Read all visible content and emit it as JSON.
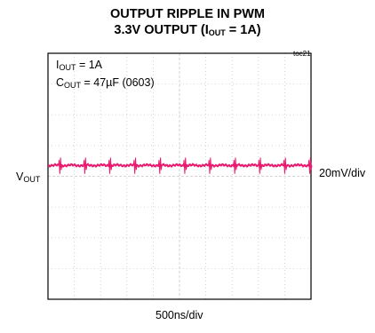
{
  "title_line1": "OUTPUT RIPPLE IN PWM",
  "title_line2_prefix": "3.3V OUTPUT (I",
  "title_line2_sub": "OUT",
  "title_line2_suffix": " = 1A)",
  "figure_tag": "toc21",
  "annotation1": {
    "prefix": "I",
    "sub": "OUT",
    "suffix": " = 1A"
  },
  "annotation2": {
    "prefix": "C",
    "sub": "OUT",
    "suffix": " = 47µF (0603)"
  },
  "channel_label": {
    "prefix": "V",
    "sub": "OUT"
  },
  "v_scale": "20mV/div",
  "time_scale": "500ns/div",
  "colors": {
    "trace": "#e8196e",
    "grid": "#c8c8c8",
    "frame": "#000000"
  },
  "chart_data": {
    "type": "line",
    "grid_divisions_x": 10,
    "grid_divisions_y": 8,
    "series": [
      {
        "trace": "VOUT ripple",
        "baseline_div_from_top": 3.5,
        "spike_positions_div": [
          0.45,
          1.4,
          2.35,
          3.3,
          4.25,
          5.2,
          6.15,
          7.1,
          8.05,
          9.0,
          9.95
        ],
        "spike_amplitude_div": 0.25
      }
    ]
  }
}
